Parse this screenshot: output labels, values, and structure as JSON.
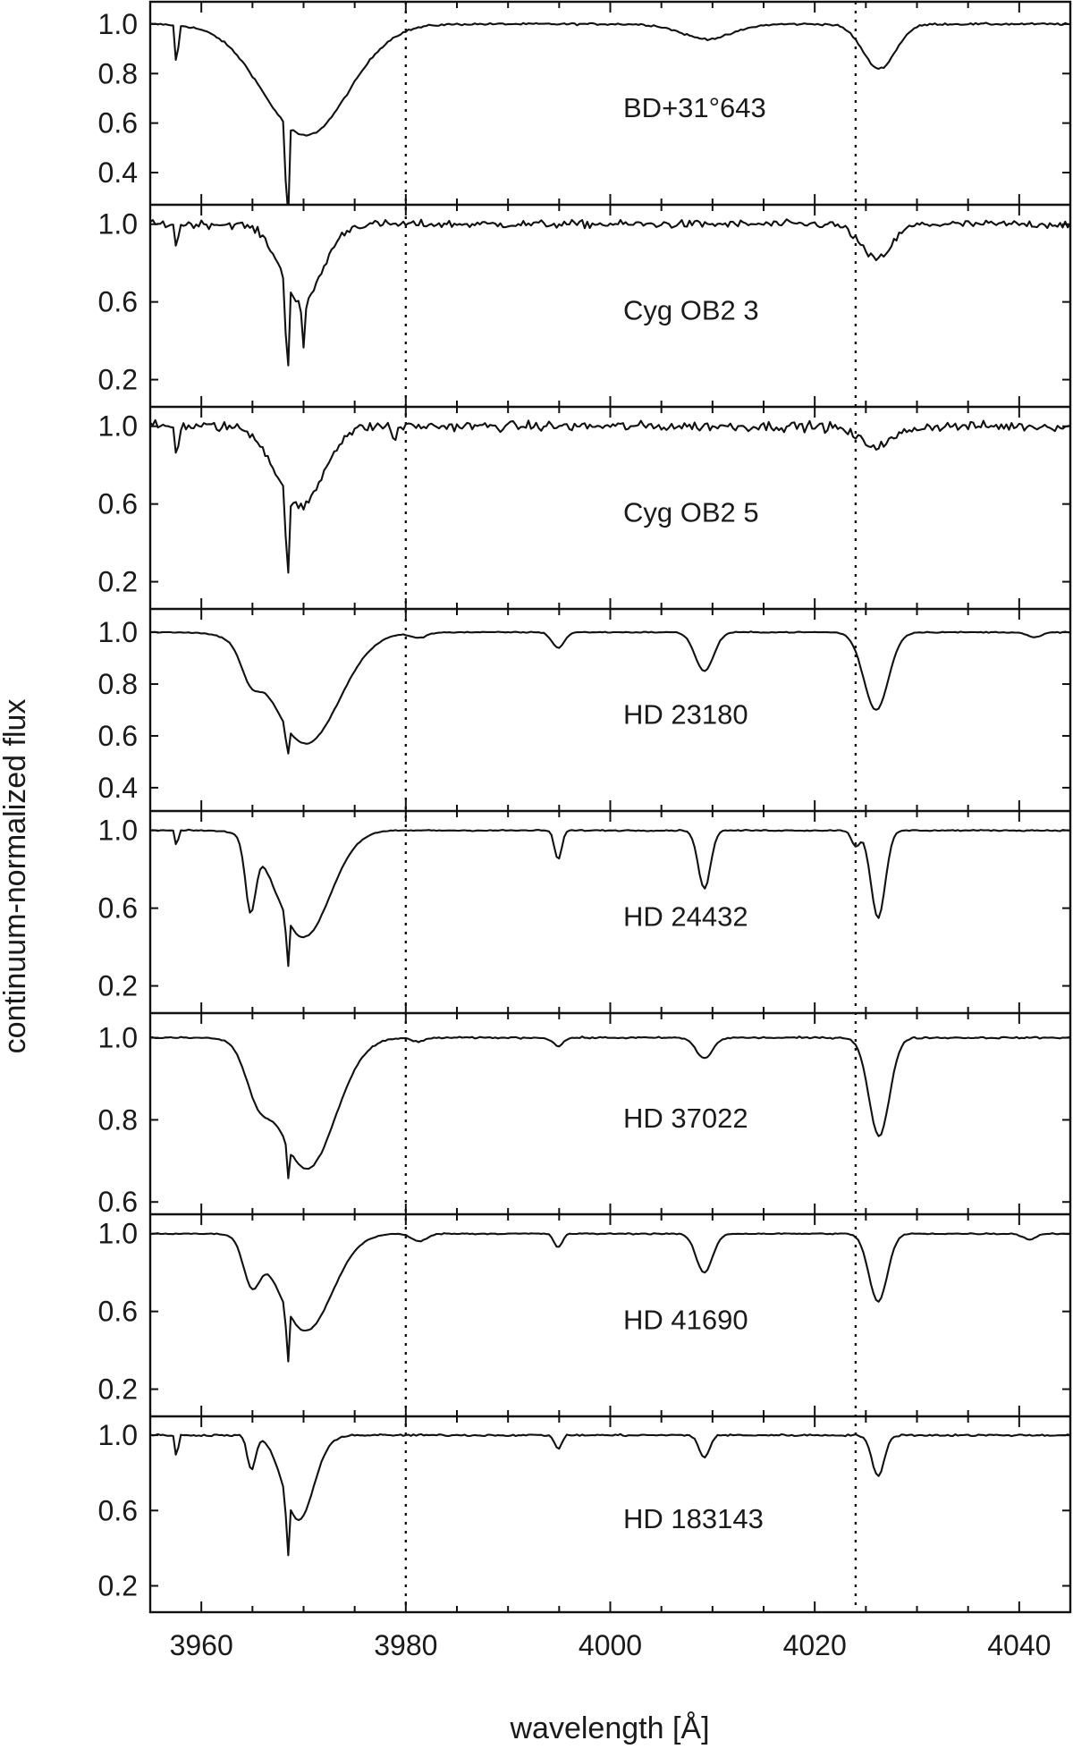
{
  "chart_data": {
    "type": "line",
    "xlabel": "wavelength [Å]",
    "ylabel": "continuum-normalized flux",
    "xlim": [
      3955,
      4045
    ],
    "x_ticks": [
      3960,
      3980,
      4000,
      4020,
      4040
    ],
    "reference_lines_x": [
      3980,
      4024
    ],
    "grid": false,
    "legend": "none",
    "x_step": 0.25,
    "panels": [
      {
        "label": "BD+31°643",
        "ylim": [
          0.27,
          1.09
        ],
        "yticks": [
          1.0,
          0.8,
          0.6,
          0.4
        ],
        "noise": 0.004,
        "features": [
          {
            "center": 3970.2,
            "depth": 0.45,
            "width": 4.2
          },
          {
            "center": 3968.4,
            "depth": 0.5,
            "width": 0.12
          },
          {
            "center": 3957.6,
            "depth": 0.2,
            "width": 0.12
          },
          {
            "center": 4009.5,
            "depth": 0.06,
            "width": 2.5
          },
          {
            "center": 4026.3,
            "depth": 0.18,
            "width": 1.6
          }
        ]
      },
      {
        "label": "Cyg OB2 3",
        "ylim": [
          0.06,
          1.1
        ],
        "yticks": [
          1.0,
          0.6,
          0.2
        ],
        "noise": 0.02,
        "features": [
          {
            "center": 3969.8,
            "depth": 0.4,
            "width": 2.0
          },
          {
            "center": 3968.4,
            "depth": 0.55,
            "width": 0.12
          },
          {
            "center": 3970.0,
            "depth": 0.25,
            "width": 0.15
          },
          {
            "center": 3957.6,
            "depth": 0.15,
            "width": 0.12
          },
          {
            "center": 4026.0,
            "depth": 0.18,
            "width": 1.5
          }
        ]
      },
      {
        "label": "Cyg OB2 5",
        "ylim": [
          0.06,
          1.1
        ],
        "yticks": [
          1.0,
          0.6,
          0.2
        ],
        "noise": 0.025,
        "features": [
          {
            "center": 3969.6,
            "depth": 0.42,
            "width": 2.2
          },
          {
            "center": 3968.4,
            "depth": 0.5,
            "width": 0.12
          },
          {
            "center": 3957.6,
            "depth": 0.2,
            "width": 0.12
          },
          {
            "center": 3978.9,
            "depth": 0.1,
            "width": 0.15
          },
          {
            "center": 4026.0,
            "depth": 0.1,
            "width": 1.8
          }
        ]
      },
      {
        "label": "HD 23180",
        "ylim": [
          0.31,
          1.09
        ],
        "yticks": [
          1.0,
          0.8,
          0.6,
          0.4
        ],
        "noise": 0.002,
        "features": [
          {
            "center": 3970.2,
            "depth": 0.43,
            "width": 3.3
          },
          {
            "center": 3964.8,
            "depth": 0.1,
            "width": 0.9
          },
          {
            "center": 3968.4,
            "depth": 0.15,
            "width": 0.1
          },
          {
            "center": 3981.3,
            "depth": 0.02,
            "width": 0.8
          },
          {
            "center": 3994.9,
            "depth": 0.06,
            "width": 0.6
          },
          {
            "center": 4009.2,
            "depth": 0.15,
            "width": 0.9
          },
          {
            "center": 4026.0,
            "depth": 0.3,
            "width": 1.2
          },
          {
            "center": 4041.5,
            "depth": 0.02,
            "width": 0.7
          }
        ]
      },
      {
        "label": "HD 24432",
        "ylim": [
          0.06,
          1.1
        ],
        "yticks": [
          1.0,
          0.6,
          0.2
        ],
        "noise": 0.003,
        "features": [
          {
            "center": 3970.0,
            "depth": 0.55,
            "width": 2.6
          },
          {
            "center": 3964.8,
            "depth": 0.35,
            "width": 0.5
          },
          {
            "center": 3968.4,
            "depth": 0.5,
            "width": 0.08
          },
          {
            "center": 3957.6,
            "depth": 0.1,
            "width": 0.12
          },
          {
            "center": 3994.9,
            "depth": 0.15,
            "width": 0.35
          },
          {
            "center": 4009.2,
            "depth": 0.3,
            "width": 0.6
          },
          {
            "center": 4024.0,
            "depth": 0.08,
            "width": 0.4
          },
          {
            "center": 4026.2,
            "depth": 0.45,
            "width": 0.7
          }
        ]
      },
      {
        "label": "HD 37022",
        "ylim": [
          0.57,
          1.06
        ],
        "yticks": [
          1.0,
          0.8,
          0.6
        ],
        "noise": 0.002,
        "features": [
          {
            "center": 3970.3,
            "depth": 0.32,
            "width": 2.8
          },
          {
            "center": 3965.5,
            "depth": 0.1,
            "width": 1.2
          },
          {
            "center": 3968.5,
            "depth": 0.08,
            "width": 0.12
          },
          {
            "center": 3981.3,
            "depth": 0.01,
            "width": 0.6
          },
          {
            "center": 3994.9,
            "depth": 0.02,
            "width": 0.5
          },
          {
            "center": 4009.2,
            "depth": 0.05,
            "width": 0.8
          },
          {
            "center": 4026.3,
            "depth": 0.24,
            "width": 1.0
          }
        ]
      },
      {
        "label": "HD 41690",
        "ylim": [
          0.06,
          1.1
        ],
        "yticks": [
          1.0,
          0.6,
          0.2
        ],
        "noise": 0.003,
        "features": [
          {
            "center": 3970.2,
            "depth": 0.5,
            "width": 2.6
          },
          {
            "center": 3964.9,
            "depth": 0.22,
            "width": 0.8
          },
          {
            "center": 3968.4,
            "depth": 0.55,
            "width": 0.08
          },
          {
            "center": 3981.3,
            "depth": 0.04,
            "width": 0.7
          },
          {
            "center": 3994.9,
            "depth": 0.07,
            "width": 0.4
          },
          {
            "center": 4009.2,
            "depth": 0.2,
            "width": 0.8
          },
          {
            "center": 4026.2,
            "depth": 0.35,
            "width": 0.9
          },
          {
            "center": 4041.0,
            "depth": 0.03,
            "width": 0.6
          }
        ]
      },
      {
        "label": "HD 183143",
        "ylim": [
          0.06,
          1.1
        ],
        "yticks": [
          1.0,
          0.6,
          0.2
        ],
        "noise": 0.005,
        "features": [
          {
            "center": 3969.5,
            "depth": 0.45,
            "width": 1.5
          },
          {
            "center": 3964.9,
            "depth": 0.18,
            "width": 0.4
          },
          {
            "center": 3968.4,
            "depth": 0.6,
            "width": 0.08
          },
          {
            "center": 3957.6,
            "depth": 0.15,
            "width": 0.12
          },
          {
            "center": 3994.9,
            "depth": 0.07,
            "width": 0.35
          },
          {
            "center": 4009.2,
            "depth": 0.12,
            "width": 0.5
          },
          {
            "center": 4026.2,
            "depth": 0.22,
            "width": 0.6
          }
        ]
      }
    ]
  }
}
